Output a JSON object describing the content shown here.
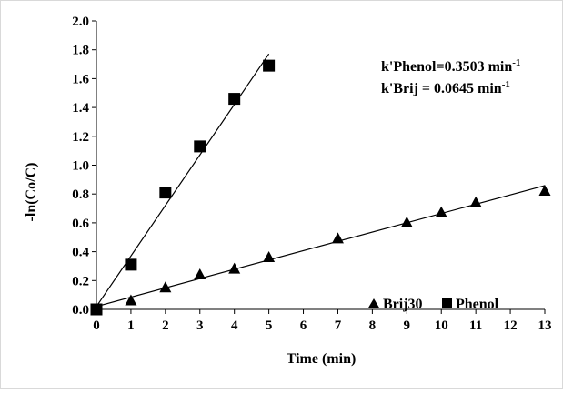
{
  "chart_data": {
    "type": "scatter",
    "xlabel": "Time (min)",
    "ylabel": "-ln(Co/C)",
    "xlim": [
      0,
      13
    ],
    "ylim": [
      0.0,
      2.0
    ],
    "xticks": [
      "0",
      "1",
      "2",
      "3",
      "4",
      "5",
      "6",
      "7",
      "8",
      "9",
      "10",
      "11",
      "12",
      "13"
    ],
    "yticks": [
      "0.0",
      "0.2",
      "0.4",
      "0.6",
      "0.8",
      "1.0",
      "1.2",
      "1.4",
      "1.6",
      "1.8",
      "2.0"
    ],
    "grid": false,
    "legend_position": "bottom-right",
    "series": [
      {
        "name": "Brij30",
        "marker": "triangle",
        "x": [
          0,
          1,
          2,
          3,
          4,
          5,
          7,
          9,
          10,
          11,
          13
        ],
        "y": [
          0.0,
          0.06,
          0.15,
          0.24,
          0.28,
          0.36,
          0.49,
          0.6,
          0.67,
          0.74,
          0.82
        ],
        "fit": {
          "slope": 0.0645,
          "intercept": 0.02,
          "x_range": [
            0,
            13
          ]
        }
      },
      {
        "name": "Phenol",
        "marker": "square",
        "x": [
          0,
          1,
          2,
          3,
          4,
          5
        ],
        "y": [
          0.0,
          0.31,
          0.81,
          1.13,
          1.46,
          1.69
        ],
        "fit": {
          "slope": 0.3503,
          "intercept": 0.02,
          "x_range": [
            0,
            5
          ]
        }
      }
    ],
    "annotations": {
      "phenol": {
        "prefix": "k'Phenol=0.3503 min",
        "sup": "-1"
      },
      "brij": {
        "prefix": "k'Brij = 0.0645 min",
        "sup": "-1"
      }
    }
  }
}
